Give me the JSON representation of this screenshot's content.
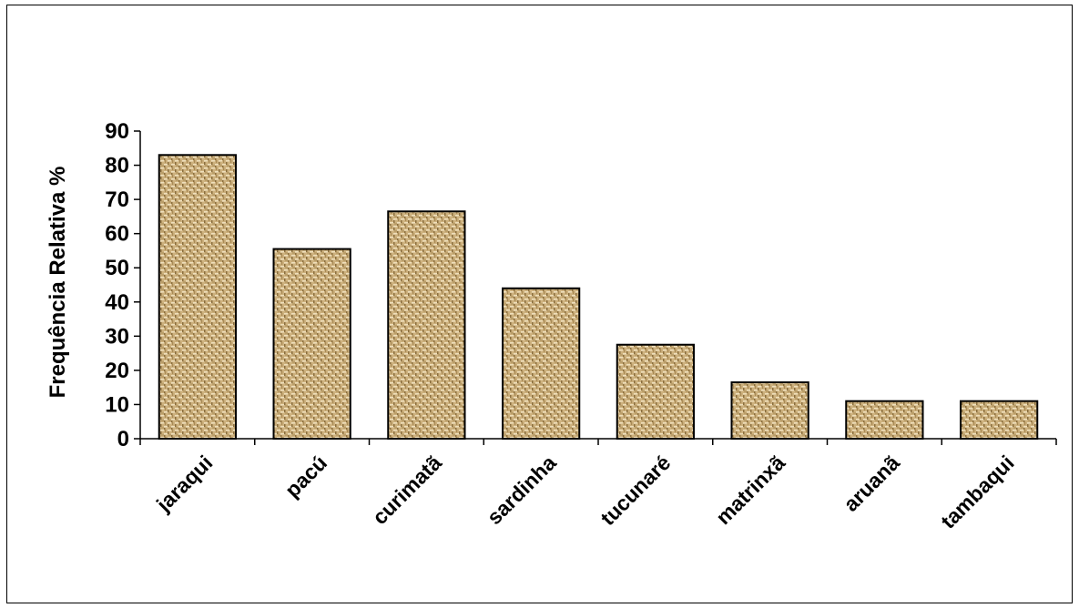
{
  "chart_data": {
    "type": "bar",
    "title": "",
    "xlabel": "",
    "ylabel": "Frequência Relativa %",
    "categories": [
      "jaraqui",
      "pacú",
      "curimatã",
      "sardinha",
      "tucunaré",
      "matrinxã",
      "aruanã",
      "tambaqui"
    ],
    "values": [
      83,
      55.5,
      66.5,
      44,
      27.5,
      16.5,
      11,
      11
    ],
    "ylim": [
      0,
      90
    ],
    "yticks": [
      "0",
      "10",
      "20",
      "30",
      "40",
      "50",
      "60",
      "70",
      "80",
      "90"
    ],
    "grid": false,
    "legend": "none",
    "bar_fill": "#c8ac78",
    "bar_pattern": "woven texture",
    "bar_outline": "#000000"
  }
}
